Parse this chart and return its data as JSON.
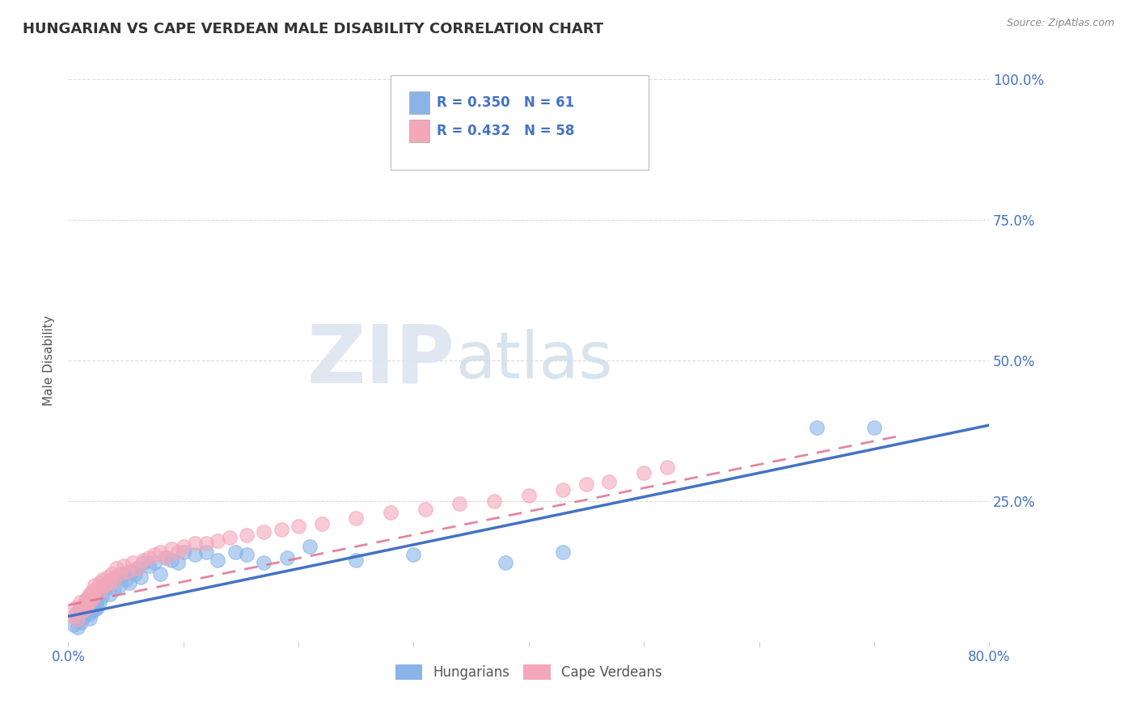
{
  "title": "HUNGARIAN VS CAPE VERDEAN MALE DISABILITY CORRELATION CHART",
  "source_text": "Source: ZipAtlas.com",
  "ylabel": "Male Disability",
  "xlim": [
    0.0,
    0.8
  ],
  "ylim": [
    0.0,
    1.0
  ],
  "xticks": [
    0.0,
    0.1,
    0.2,
    0.3,
    0.4,
    0.5,
    0.6,
    0.7,
    0.8
  ],
  "xticklabels": [
    "0.0%",
    "",
    "",
    "",
    "",
    "",
    "",
    "",
    "80.0%"
  ],
  "yticks": [
    0.0,
    0.25,
    0.5,
    0.75,
    1.0
  ],
  "yticklabels": [
    "",
    "25.0%",
    "50.0%",
    "75.0%",
    "100.0%"
  ],
  "hungarian_color": "#8ab4e8",
  "cape_verdean_color": "#f4a7b9",
  "trend_hungarian_color": "#4472c4",
  "trend_cape_verdean_color": "#e07090",
  "watermark_zip": "ZIP",
  "watermark_atlas": "atlas",
  "legend_r1": "R = 0.350",
  "legend_n1": "N = 61",
  "legend_r2": "R = 0.432",
  "legend_n2": "N = 58",
  "legend_label1": "Hungarians",
  "legend_label2": "Cape Verdeans",
  "background_color": "#ffffff",
  "grid_color": "#cccccc",
  "hungarian_x": [
    0.005,
    0.007,
    0.008,
    0.009,
    0.01,
    0.011,
    0.012,
    0.013,
    0.014,
    0.015,
    0.016,
    0.017,
    0.018,
    0.019,
    0.02,
    0.021,
    0.022,
    0.023,
    0.024,
    0.025,
    0.026,
    0.027,
    0.028,
    0.029,
    0.03,
    0.032,
    0.034,
    0.036,
    0.038,
    0.04,
    0.042,
    0.045,
    0.048,
    0.05,
    0.053,
    0.055,
    0.058,
    0.06,
    0.063,
    0.065,
    0.07,
    0.075,
    0.08,
    0.085,
    0.09,
    0.095,
    0.1,
    0.11,
    0.12,
    0.13,
    0.145,
    0.155,
    0.17,
    0.19,
    0.21,
    0.25,
    0.3,
    0.38,
    0.43,
    0.65,
    0.7
  ],
  "hungarian_y": [
    0.03,
    0.05,
    0.025,
    0.04,
    0.06,
    0.035,
    0.055,
    0.045,
    0.065,
    0.07,
    0.05,
    0.055,
    0.048,
    0.042,
    0.06,
    0.055,
    0.065,
    0.058,
    0.07,
    0.06,
    0.08,
    0.07,
    0.09,
    0.08,
    0.1,
    0.095,
    0.105,
    0.085,
    0.11,
    0.095,
    0.115,
    0.1,
    0.12,
    0.11,
    0.105,
    0.125,
    0.12,
    0.13,
    0.115,
    0.14,
    0.135,
    0.14,
    0.12,
    0.15,
    0.145,
    0.14,
    0.16,
    0.155,
    0.16,
    0.145,
    0.16,
    0.155,
    0.14,
    0.15,
    0.17,
    0.145,
    0.155,
    0.14,
    0.16,
    0.38,
    0.38
  ],
  "cape_verdean_x": [
    0.004,
    0.006,
    0.008,
    0.01,
    0.012,
    0.013,
    0.015,
    0.016,
    0.017,
    0.018,
    0.019,
    0.02,
    0.021,
    0.022,
    0.023,
    0.025,
    0.027,
    0.028,
    0.03,
    0.032,
    0.034,
    0.036,
    0.038,
    0.04,
    0.042,
    0.045,
    0.048,
    0.052,
    0.056,
    0.06,
    0.065,
    0.07,
    0.075,
    0.08,
    0.085,
    0.09,
    0.095,
    0.1,
    0.11,
    0.12,
    0.13,
    0.14,
    0.155,
    0.17,
    0.185,
    0.2,
    0.22,
    0.25,
    0.28,
    0.31,
    0.34,
    0.37,
    0.4,
    0.43,
    0.45,
    0.47,
    0.5,
    0.52
  ],
  "cape_verdean_y": [
    0.045,
    0.06,
    0.04,
    0.07,
    0.055,
    0.065,
    0.075,
    0.06,
    0.08,
    0.07,
    0.085,
    0.075,
    0.09,
    0.08,
    0.1,
    0.095,
    0.105,
    0.09,
    0.11,
    0.1,
    0.115,
    0.105,
    0.12,
    0.11,
    0.13,
    0.12,
    0.135,
    0.125,
    0.14,
    0.13,
    0.145,
    0.15,
    0.155,
    0.16,
    0.15,
    0.165,
    0.16,
    0.17,
    0.175,
    0.175,
    0.18,
    0.185,
    0.19,
    0.195,
    0.2,
    0.205,
    0.21,
    0.22,
    0.23,
    0.235,
    0.245,
    0.25,
    0.26,
    0.27,
    0.28,
    0.285,
    0.3,
    0.31
  ],
  "trend_h_x0": 0.0,
  "trend_h_x1": 0.8,
  "trend_h_y0": 0.045,
  "trend_h_y1": 0.385,
  "trend_c_x0": 0.0,
  "trend_c_x1": 0.72,
  "trend_c_y0": 0.065,
  "trend_c_y1": 0.365
}
